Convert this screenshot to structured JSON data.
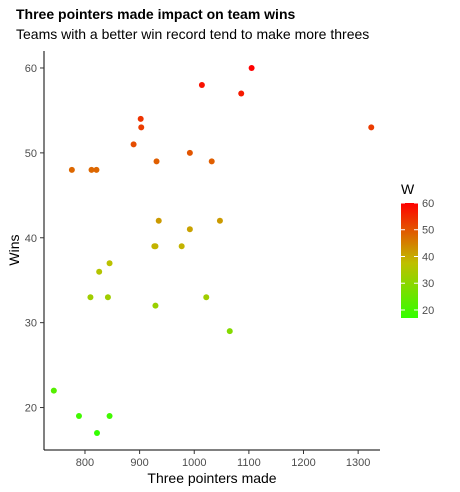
{
  "chart_data": {
    "type": "scatter",
    "title": "Three pointers made impact on team wins",
    "subtitle": "Teams with a better win record tend to make more threes",
    "xlabel": "Three pointers made",
    "ylabel": "Wins",
    "xlim": [
      725,
      1340
    ],
    "ylim": [
      15,
      62
    ],
    "xticks": [
      800,
      900,
      1000,
      1100,
      1200,
      1300
    ],
    "yticks": [
      20,
      30,
      40,
      50,
      60
    ],
    "grid": false,
    "legend": {
      "title": "W",
      "placement": "right",
      "min": 17,
      "max": 60,
      "ticks": [
        20,
        30,
        40,
        50,
        60
      ],
      "colors": [
        "#33ff00",
        "#bfbf00",
        "#ff0000"
      ]
    },
    "points": [
      {
        "x": 1105,
        "y": 60
      },
      {
        "x": 1014,
        "y": 58
      },
      {
        "x": 1086,
        "y": 57
      },
      {
        "x": 902,
        "y": 54
      },
      {
        "x": 903,
        "y": 53
      },
      {
        "x": 1324,
        "y": 53
      },
      {
        "x": 889,
        "y": 51
      },
      {
        "x": 992,
        "y": 50
      },
      {
        "x": 931,
        "y": 49
      },
      {
        "x": 1032,
        "y": 49
      },
      {
        "x": 776,
        "y": 48
      },
      {
        "x": 812,
        "y": 48
      },
      {
        "x": 821,
        "y": 48
      },
      {
        "x": 935,
        "y": 42
      },
      {
        "x": 1047,
        "y": 42
      },
      {
        "x": 992,
        "y": 41
      },
      {
        "x": 927,
        "y": 39
      },
      {
        "x": 929,
        "y": 39
      },
      {
        "x": 977,
        "y": 39
      },
      {
        "x": 845,
        "y": 37
      },
      {
        "x": 826,
        "y": 36
      },
      {
        "x": 810,
        "y": 33
      },
      {
        "x": 842,
        "y": 33
      },
      {
        "x": 1022,
        "y": 33
      },
      {
        "x": 929,
        "y": 32
      },
      {
        "x": 1065,
        "y": 29
      },
      {
        "x": 743,
        "y": 22
      },
      {
        "x": 789,
        "y": 19
      },
      {
        "x": 845,
        "y": 19
      },
      {
        "x": 822,
        "y": 17
      }
    ]
  }
}
